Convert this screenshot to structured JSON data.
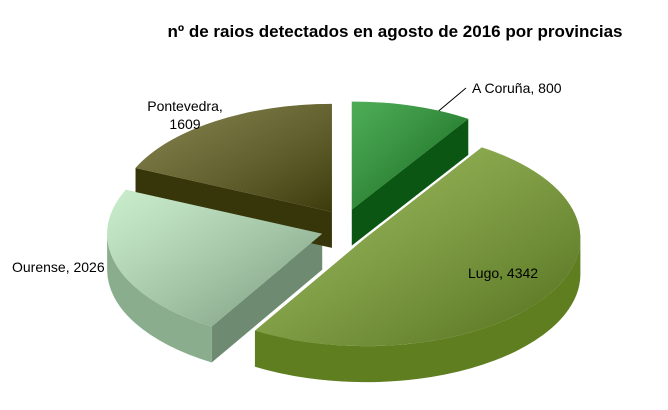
{
  "chart_data": {
    "type": "pie",
    "title": "nº de raios detectados en agosto de 2016 por provincias",
    "values": [
      800,
      4342,
      2026,
      1609
    ],
    "value_labels": [
      "A Coruña, 800",
      "Lugo, 4342",
      "Ourense, 2026",
      "Pontevedra, 1609"
    ],
    "colors": [
      "#12901e",
      "#7da82a",
      "#b8e8bc",
      "#5c5a12"
    ]
  }
}
